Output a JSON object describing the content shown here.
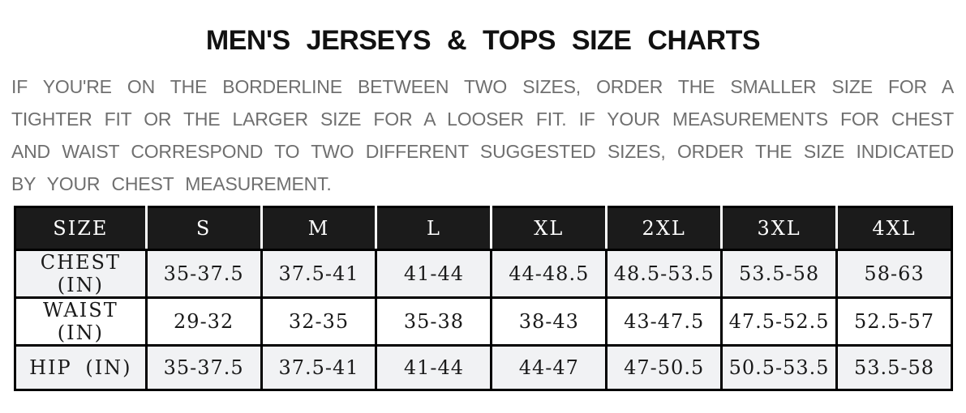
{
  "page": {
    "title": "MEN'S  JERSEYS  &  TOPS SIZE  CHARTS",
    "intro_lines": [
      "IF YOU'RE ON THE BORDERLINE BETWEEN TWO SIZES, ORDER THE SMALLER SIZE FOR A",
      "TIGHTER FIT OR THE LARGER SIZE FOR A LOOSER FIT. IF YOUR MEASUREMENTS FOR CHEST",
      "AND WAIST CORRESPOND TO TWO DIFFERENT SUGGESTED SIZES, ORDER THE SIZE INDICATED",
      "BY YOUR CHEST MEASUREMENT."
    ]
  },
  "size_chart": {
    "columns": [
      "SIZE",
      "S",
      "M",
      "L",
      "XL",
      "2XL",
      "3XL",
      "4XL"
    ],
    "rows": [
      {
        "label": "CHEST (IN)",
        "values": [
          "35-37.5",
          "37.5-41",
          "41-44",
          "44-48.5",
          "48.5-53.5",
          "53.5-58",
          "58-63"
        ]
      },
      {
        "label": "WAIST (IN)",
        "values": [
          "29-32",
          "32-35",
          "35-38",
          "38-43",
          "43-47.5",
          "47.5-52.5",
          "52.5-57"
        ]
      },
      {
        "label": "HIP (IN)",
        "values": [
          "35-37.5",
          "37.5-41",
          "41-44",
          "44-47",
          "47-50.5",
          "50.5-53.5",
          "53.5-58"
        ]
      }
    ]
  },
  "colors": {
    "header_bg": "#1b1b1b",
    "header_text": "#ffffff",
    "shaded_row_bg": "#f1f2f4",
    "body_text": "#1a1a1a",
    "intro_text": "#6f6f6f",
    "table_border": "#000000"
  }
}
